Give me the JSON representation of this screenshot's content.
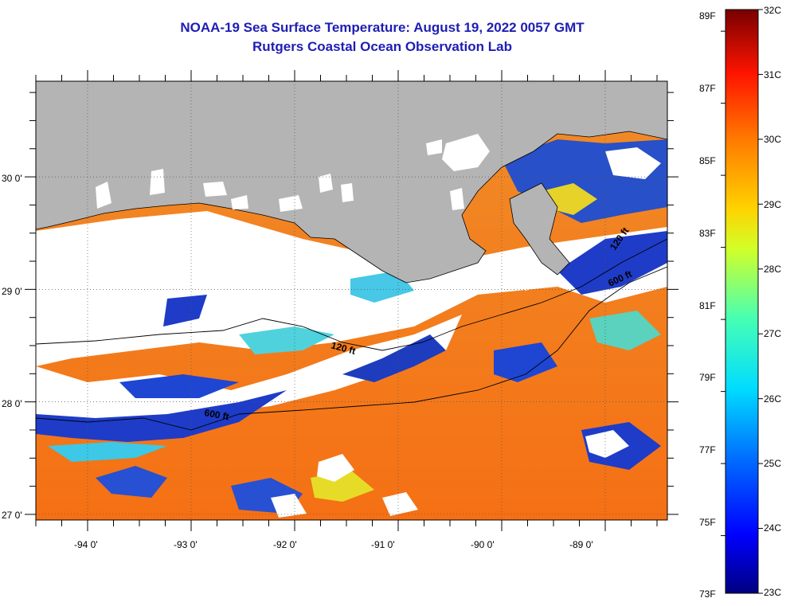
{
  "title": {
    "line1": "NOAA-19 Sea Surface Temperature:  August 19, 2022 0057 GMT",
    "line2": "Rutgers Coastal Ocean Observation Lab"
  },
  "map": {
    "lon_range": [
      -94.5,
      -88.4
    ],
    "lat_range": [
      26.95,
      30.85
    ],
    "lat_labels": [
      "30 0'",
      "29 0'",
      "28 0'",
      "27 0'"
    ],
    "lon_labels": [
      "-94 0'",
      "-93 0'",
      "-92 0'",
      "-91 0'",
      "-90 0'",
      "-89 0'"
    ],
    "contour_labels": [
      "120 ft",
      "600 ft",
      "120 ft",
      "600 ft"
    ],
    "colors": {
      "land": "#b4b4b4",
      "cloud": "#ffffff",
      "warm_water": "#f57a14",
      "cool_water": "#1432c8"
    }
  },
  "colorbar": {
    "fahrenheit_labels": [
      "89F",
      "87F",
      "85F",
      "83F",
      "81F",
      "79F",
      "77F",
      "75F",
      "73F"
    ],
    "celsius_labels": [
      "32C",
      "31C",
      "30C",
      "29C",
      "28C",
      "27C",
      "26C",
      "25C",
      "24C",
      "23C"
    ],
    "min_c": 23,
    "max_c": 32
  }
}
